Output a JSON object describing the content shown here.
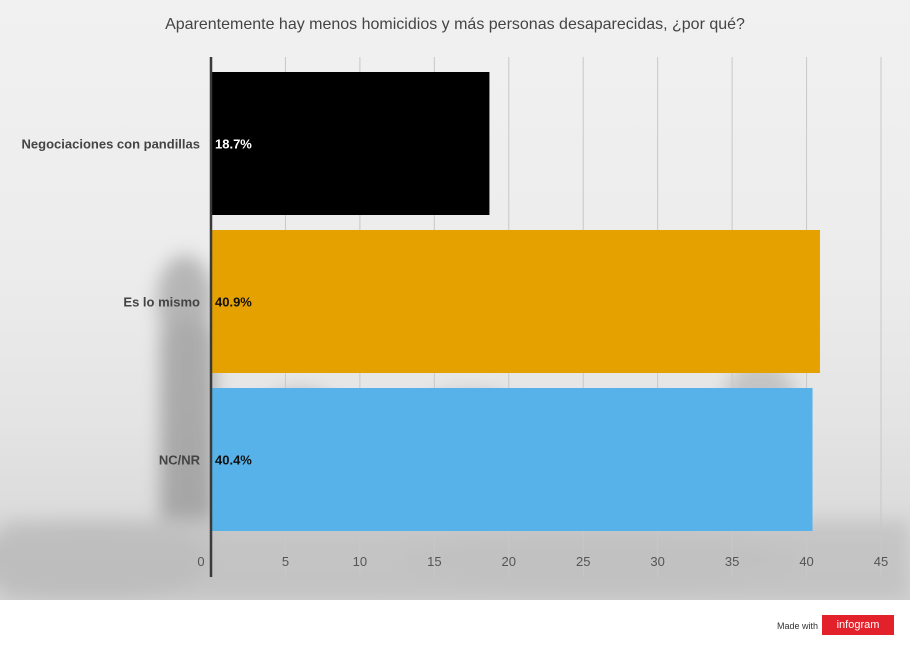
{
  "chart_data": {
    "type": "bar",
    "orientation": "horizontal",
    "title": "Aparentemente hay menos homicidios y más personas desaparecidas, ¿por qué?",
    "xlabel": "",
    "ylabel": "",
    "xlim": [
      0,
      45
    ],
    "x_ticks": [
      "0",
      "5",
      "10",
      "15",
      "20",
      "25",
      "30",
      "35",
      "40",
      "45"
    ],
    "grid": true,
    "categories": [
      "Negociaciones con pandillas",
      "Es lo mismo",
      "NC/NR"
    ],
    "values": [
      18.7,
      40.9,
      40.4
    ],
    "value_labels": [
      "18.7%",
      "40.9%",
      "40.4%"
    ],
    "bar_colors": [
      "#000000",
      "#e5a100",
      "#56b2e8"
    ],
    "label_colors": [
      "#ffffff",
      "#111111",
      "#111111"
    ]
  },
  "footer": {
    "made_with": "Made with",
    "brand": "infogram",
    "brand_color": "#e3212b"
  }
}
